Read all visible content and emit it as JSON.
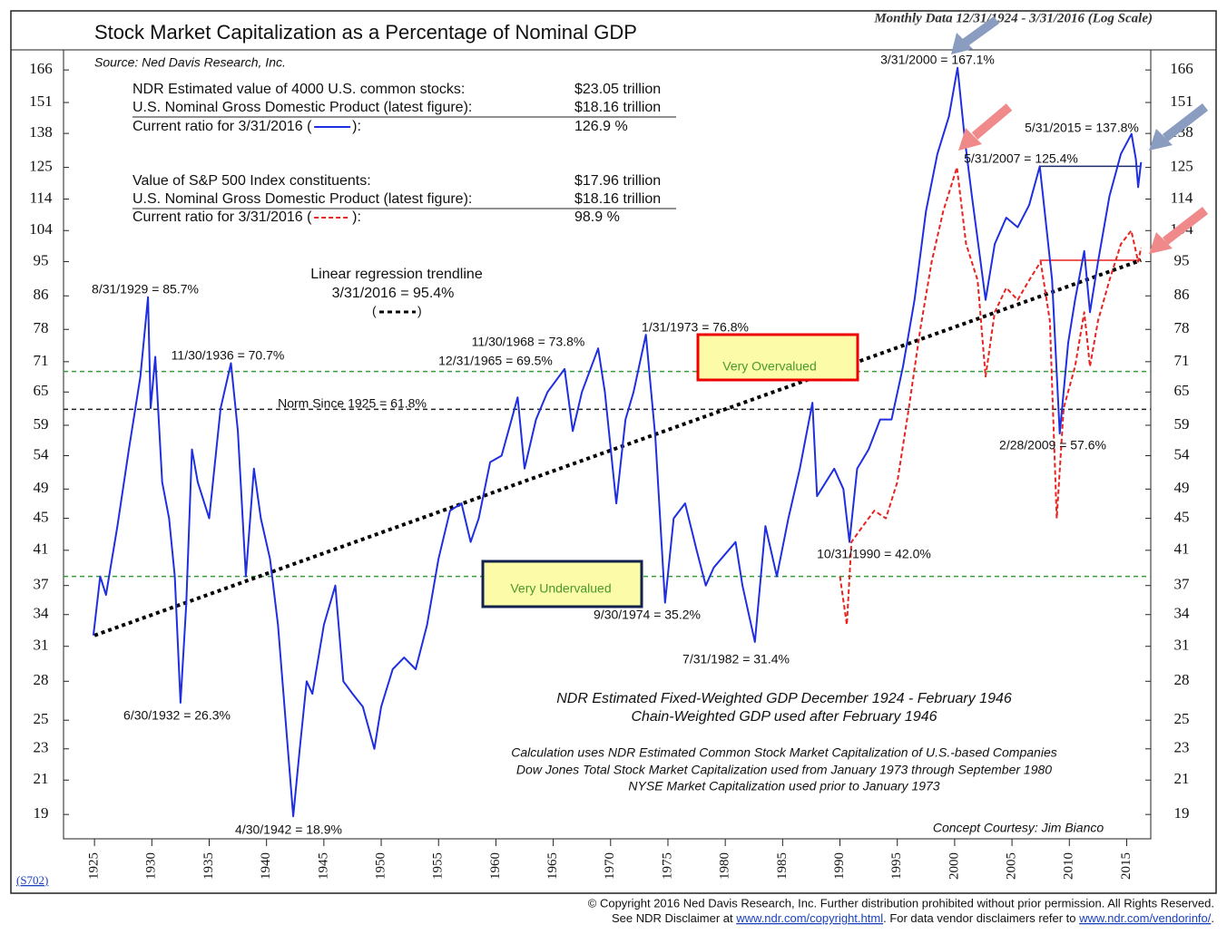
{
  "chart_data": {
    "type": "line",
    "title": "Stock Market Capitalization as a Percentage of Nominal GDP",
    "subtitle": "Monthly Data 12/31/1924 - 3/31/2016 (Log Scale)",
    "source": "Source: Ned Davis Research, Inc.",
    "log_scale": true,
    "xlim": [
      1922.3,
      2017.1
    ],
    "ylim": [
      17.7,
      176
    ],
    "xticks": [
      1925,
      1930,
      1935,
      1940,
      1945,
      1950,
      1955,
      1960,
      1965,
      1970,
      1975,
      1980,
      1985,
      1990,
      1995,
      2000,
      2005,
      2010,
      2015
    ],
    "yticks": [
      166,
      151,
      138,
      125,
      114,
      104,
      95,
      86,
      78,
      71,
      65,
      59,
      54,
      49,
      45,
      41,
      37,
      34,
      31,
      28,
      25,
      23,
      21,
      19
    ],
    "series": [
      {
        "color": "#1f2fe0",
        "dash": false,
        "x": [
          1924.9,
          1925.5,
          1926,
          1927,
          1928,
          1929,
          1929.67,
          1929.9,
          1930.3,
          1930.9,
          1931.5,
          1932,
          1932.5,
          1933,
          1933.5,
          1934,
          1935,
          1936,
          1936.9,
          1937.5,
          1938.2,
          1938.9,
          1939.5,
          1940.3,
          1941,
          1942.33,
          1942.9,
          1943.5,
          1944,
          1945,
          1946,
          1946.7,
          1947.5,
          1948.4,
          1949.4,
          1950,
          1951,
          1952,
          1953,
          1954,
          1955,
          1956,
          1957,
          1957.8,
          1958.5,
          1959.5,
          1960.5,
          1961.9,
          1962.5,
          1963.5,
          1964.5,
          1965.99,
          1966.7,
          1967.5,
          1968.92,
          1969.5,
          1970.5,
          1971.3,
          1972,
          1973.08,
          1973.9,
          1974.75,
          1975.5,
          1976.5,
          1977.5,
          1978.3,
          1979,
          1980.9,
          1981.5,
          1982.58,
          1983.5,
          1984.5,
          1985.5,
          1986.5,
          1987.6,
          1988,
          1989.5,
          1990.3,
          1990.83,
          1991.5,
          1992.5,
          1993.5,
          1994.5,
          1995.5,
          1996.5,
          1997.5,
          1998.5,
          1999.5,
          2000.25,
          2000.9,
          2001.5,
          2002.7,
          2003.5,
          2004.5,
          2005.5,
          2006.5,
          2007.42,
          2008,
          2008.5,
          2009.16,
          2009.9,
          2010.5,
          2011.3,
          2011.8,
          2012.5,
          2013.5,
          2014.5,
          2015.42,
          2015.8,
          2016,
          2016.25
        ],
        "values": [
          32,
          38,
          36,
          44,
          55,
          68,
          85.7,
          62,
          72,
          50,
          45,
          38,
          26.3,
          35,
          55,
          50,
          45,
          62,
          70.7,
          58,
          38,
          52,
          45,
          40,
          33,
          18.9,
          23,
          28,
          27,
          33,
          37,
          28,
          27,
          26,
          23,
          26,
          29,
          30,
          29,
          33,
          40,
          46,
          47,
          42,
          45,
          53,
          54,
          64,
          52,
          60,
          65,
          69.5,
          58,
          65,
          73.8,
          65,
          47,
          60,
          65,
          76.8,
          57,
          35.2,
          45,
          47,
          41,
          37,
          39,
          42,
          37,
          31.4,
          44,
          38,
          45,
          52,
          63,
          48,
          52,
          49,
          42.0,
          52,
          55,
          60,
          60,
          70,
          85,
          110,
          130,
          145,
          167.1,
          135,
          115,
          85,
          100,
          108,
          105,
          112,
          125.4,
          105,
          90,
          57.6,
          75,
          85,
          98,
          82,
          95,
          115,
          130,
          137.8,
          128,
          118,
          126.9
        ]
      },
      {
        "color": "#e8231f",
        "dash": true,
        "x": [
          1990,
          1990.6,
          1991,
          1992,
          1993,
          1994,
          1995,
          1996,
          1997,
          1998,
          1999,
          2000.2,
          2001,
          2002,
          2002.7,
          2003.5,
          2004.5,
          2005.5,
          2006.5,
          2007.5,
          2008.3,
          2008.9,
          2009.5,
          2010.5,
          2011.3,
          2011.8,
          2012.5,
          2013.5,
          2014.5,
          2015.4,
          2016,
          2016.25
        ],
        "values": [
          38,
          33,
          42,
          44,
          46,
          45,
          50,
          62,
          78,
          95,
          110,
          125,
          100,
          90,
          68,
          82,
          88,
          85,
          90,
          95,
          80,
          45,
          62,
          70,
          82,
          70,
          80,
          90,
          100,
          104,
          95,
          98.9
        ]
      }
    ],
    "trendline": {
      "x": [
        1925,
        2016.25
      ],
      "values": [
        32,
        95.4
      ],
      "color": "#000"
    },
    "hlines": [
      {
        "value": 69,
        "color": "#3a9a3a"
      },
      {
        "value": 38,
        "color": "#3a9a3a"
      },
      {
        "value": 61.8,
        "color": "#222"
      },
      {
        "value": 125.4,
        "color": "#1a2a6a",
        "x": [
          2007.42,
          2016.25
        ]
      },
      {
        "value": 95.4,
        "color": "#e8231f",
        "x": [
          2007.42,
          2016.25
        ]
      }
    ],
    "info_rows": [
      [
        "NDR Estimated value of 4000 U.S. common stocks:",
        "$23.05 trillion"
      ],
      [
        "U.S. Nominal Gross Domestic Product (latest figure):",
        "$18.16 trillion"
      ],
      [
        "Current ratio for 3/31/2016 (",
        "):",
        "126.9 %"
      ],
      [
        "Value of S&P 500 Index constituents:",
        "$17.96 trillion"
      ],
      [
        "U.S. Nominal Gross Domestic Product (latest figure):",
        "$18.16 trillion"
      ],
      [
        "Current ratio for 3/31/2016 (",
        "):",
        "98.9 %"
      ]
    ],
    "annotations": [
      "3/31/2000 = 167.1%",
      "5/31/2015 = 137.8%",
      "5/31/2007 = 125.4%",
      "8/31/1929 = 85.7%",
      "11/30/1936 = 70.7%",
      "11/30/1968 = 73.8%",
      "12/31/1965 = 69.5%",
      "1/31/1973 = 76.8%",
      "Norm Since 1925 = 61.8%",
      "Linear regression trendline",
      "3/31/2016 = 95.4%",
      "6/30/1932 = 26.3%",
      "4/30/1942 = 18.9%",
      "9/30/1974 = 35.2%",
      "7/31/1982 = 31.4%",
      "10/31/1990 = 42.0%",
      "2/28/2009 = 57.6%",
      "NDR Estimated Fixed-Weighted GDP December 1924 - February 1946",
      "Chain-Weighted GDP used after February 1946",
      "Calculation uses NDR Estimated Common Stock Market Capitalization of U.S.-based Companies",
      "Dow Jones Total Stock Market Capitalization used from January 1973 through September 1980",
      "NYSE Market Capitalization used prior to January 1973",
      "Concept Courtesy: Jim Bianco"
    ],
    "overvalued_label": "Very Overvalued",
    "undervalued_label": "Very Undervalued",
    "code": "(S702)",
    "footer": [
      "© Copyright 2016 Ned Davis Research, Inc.  Further distribution prohibited without prior permission.  All Rights Reserved.",
      "See NDR Disclaimer at",
      "www.ndr.com/copyright.html",
      ". For data vendor disclaimers refer to",
      "www.ndr.com/vendorinfo/",
      "."
    ]
  }
}
